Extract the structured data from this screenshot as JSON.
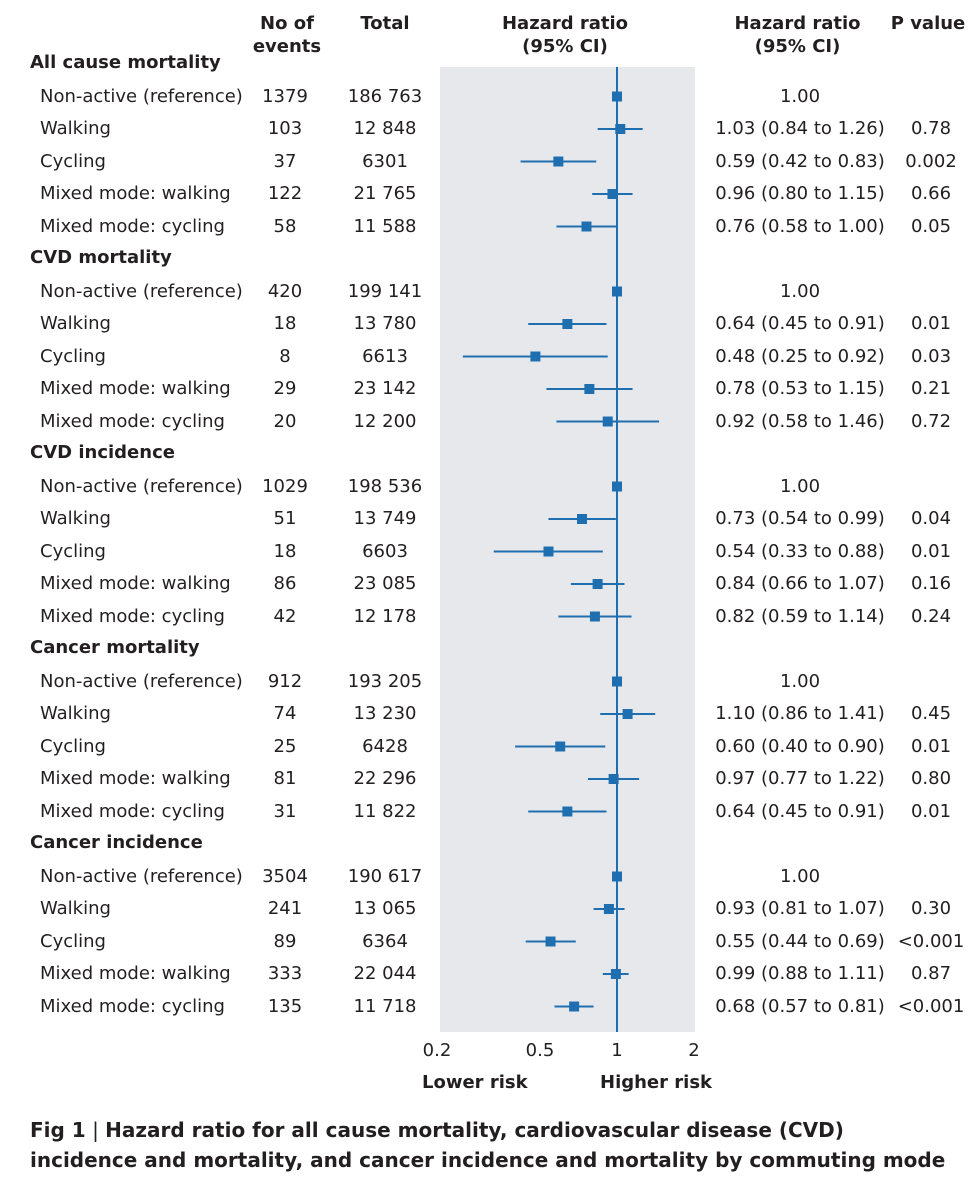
{
  "headers": {
    "events": "No of events",
    "total": "Total",
    "hr_plot": [
      "Hazard ratio",
      "(95% CI)"
    ],
    "hr_text": [
      "Hazard ratio",
      "(95% CI)"
    ],
    "pvalue": "P value"
  },
  "axis": {
    "ticks": [
      "0.2",
      "0.5",
      "1",
      "2"
    ],
    "lower_label": "Lower risk",
    "higher_label": "Higher risk"
  },
  "caption": {
    "label": "Fig 1",
    "text": "Hazard ratio for all cause mortality, cardiovascular disease (CVD) incidence and mortality, and cancer incidence and mortality by commuting mode"
  },
  "colors": {
    "marker": "#1f6fb0",
    "panel": "#e7e8ec",
    "reference_line": "#1f6fb0"
  },
  "chart_data": {
    "type": "forest",
    "xscale": "log",
    "xlim": [
      0.2,
      2
    ],
    "xticks": [
      0.2,
      0.5,
      1,
      2
    ],
    "reference_value": 1,
    "groups": [
      {
        "title": "All cause mortality",
        "rows": [
          {
            "label": "Non-active (reference)",
            "events": "1379",
            "total": "186 763",
            "hr": 1.0,
            "lo": null,
            "hi": null,
            "hr_text": "1.00",
            "p": ""
          },
          {
            "label": "Walking",
            "events": "103",
            "total": "12 848",
            "hr": 1.03,
            "lo": 0.84,
            "hi": 1.26,
            "hr_text": "1.03 (0.84 to 1.26)",
            "p": "0.78"
          },
          {
            "label": "Cycling",
            "events": "37",
            "total": "6301",
            "hr": 0.59,
            "lo": 0.42,
            "hi": 0.83,
            "hr_text": "0.59 (0.42 to 0.83)",
            "p": "0.002"
          },
          {
            "label": "Mixed mode: walking",
            "events": "122",
            "total": "21 765",
            "hr": 0.96,
            "lo": 0.8,
            "hi": 1.15,
            "hr_text": "0.96 (0.80 to 1.15)",
            "p": "0.66"
          },
          {
            "label": "Mixed mode: cycling",
            "events": "58",
            "total": "11 588",
            "hr": 0.76,
            "lo": 0.58,
            "hi": 1.0,
            "hr_text": "0.76 (0.58 to 1.00)",
            "p": "0.05"
          }
        ]
      },
      {
        "title": "CVD mortality",
        "rows": [
          {
            "label": "Non-active (reference)",
            "events": "420",
            "total": "199 141",
            "hr": 1.0,
            "lo": null,
            "hi": null,
            "hr_text": "1.00",
            "p": ""
          },
          {
            "label": "Walking",
            "events": "18",
            "total": "13 780",
            "hr": 0.64,
            "lo": 0.45,
            "hi": 0.91,
            "hr_text": "0.64 (0.45 to 0.91)",
            "p": "0.01"
          },
          {
            "label": "Cycling",
            "events": "8",
            "total": "6613",
            "hr": 0.48,
            "lo": 0.25,
            "hi": 0.92,
            "hr_text": "0.48 (0.25 to 0.92)",
            "p": "0.03"
          },
          {
            "label": "Mixed mode: walking",
            "events": "29",
            "total": "23 142",
            "hr": 0.78,
            "lo": 0.53,
            "hi": 1.15,
            "hr_text": "0.78 (0.53 to 1.15)",
            "p": "0.21"
          },
          {
            "label": "Mixed mode: cycling",
            "events": "20",
            "total": "12 200",
            "hr": 0.92,
            "lo": 0.58,
            "hi": 1.46,
            "hr_text": "0.92 (0.58 to 1.46)",
            "p": "0.72"
          }
        ]
      },
      {
        "title": "CVD incidence",
        "rows": [
          {
            "label": "Non-active (reference)",
            "events": "1029",
            "total": "198 536",
            "hr": 1.0,
            "lo": null,
            "hi": null,
            "hr_text": "1.00",
            "p": ""
          },
          {
            "label": "Walking",
            "events": "51",
            "total": "13 749",
            "hr": 0.73,
            "lo": 0.54,
            "hi": 0.99,
            "hr_text": "0.73 (0.54 to 0.99)",
            "p": "0.04"
          },
          {
            "label": "Cycling",
            "events": "18",
            "total": "6603",
            "hr": 0.54,
            "lo": 0.33,
            "hi": 0.88,
            "hr_text": "0.54 (0.33 to 0.88)",
            "p": "0.01"
          },
          {
            "label": "Mixed mode: walking",
            "events": "86",
            "total": "23 085",
            "hr": 0.84,
            "lo": 0.66,
            "hi": 1.07,
            "hr_text": "0.84 (0.66 to 1.07)",
            "p": "0.16"
          },
          {
            "label": "Mixed mode: cycling",
            "events": "42",
            "total": "12 178",
            "hr": 0.82,
            "lo": 0.59,
            "hi": 1.14,
            "hr_text": "0.82 (0.59 to 1.14)",
            "p": "0.24"
          }
        ]
      },
      {
        "title": "Cancer mortality",
        "rows": [
          {
            "label": "Non-active (reference)",
            "events": "912",
            "total": "193 205",
            "hr": 1.0,
            "lo": null,
            "hi": null,
            "hr_text": "1.00",
            "p": ""
          },
          {
            "label": "Walking",
            "events": "74",
            "total": "13 230",
            "hr": 1.1,
            "lo": 0.86,
            "hi": 1.41,
            "hr_text": "1.10 (0.86 to 1.41)",
            "p": "0.45"
          },
          {
            "label": "Cycling",
            "events": "25",
            "total": "6428",
            "hr": 0.6,
            "lo": 0.4,
            "hi": 0.9,
            "hr_text": "0.60 (0.40 to 0.90)",
            "p": "0.01"
          },
          {
            "label": "Mixed mode: walking",
            "events": "81",
            "total": "22 296",
            "hr": 0.97,
            "lo": 0.77,
            "hi": 1.22,
            "hr_text": "0.97 (0.77 to 1.22)",
            "p": "0.80"
          },
          {
            "label": "Mixed mode: cycling",
            "events": "31",
            "total": "11 822",
            "hr": 0.64,
            "lo": 0.45,
            "hi": 0.91,
            "hr_text": "0.64 (0.45 to 0.91)",
            "p": "0.01"
          }
        ]
      },
      {
        "title": "Cancer incidence",
        "rows": [
          {
            "label": "Non-active (reference)",
            "events": "3504",
            "total": "190 617",
            "hr": 1.0,
            "lo": null,
            "hi": null,
            "hr_text": "1.00",
            "p": ""
          },
          {
            "label": "Walking",
            "events": "241",
            "total": "13 065",
            "hr": 0.93,
            "lo": 0.81,
            "hi": 1.07,
            "hr_text": "0.93 (0.81 to 1.07)",
            "p": "0.30"
          },
          {
            "label": "Cycling",
            "events": "89",
            "total": "6364",
            "hr": 0.55,
            "lo": 0.44,
            "hi": 0.69,
            "hr_text": "0.55 (0.44 to 0.69)",
            "p": "<0.001"
          },
          {
            "label": "Mixed mode: walking",
            "events": "333",
            "total": "22 044",
            "hr": 0.99,
            "lo": 0.88,
            "hi": 1.11,
            "hr_text": "0.99 (0.88 to 1.11)",
            "p": "0.87"
          },
          {
            "label": "Mixed mode: cycling",
            "events": "135",
            "total": "11 718",
            "hr": 0.68,
            "lo": 0.57,
            "hi": 0.81,
            "hr_text": "0.68 (0.57 to 0.81)",
            "p": "<0.001"
          }
        ]
      }
    ]
  }
}
